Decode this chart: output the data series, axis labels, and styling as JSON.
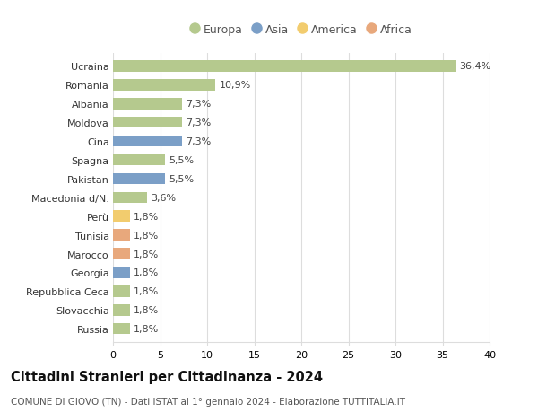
{
  "countries": [
    "Ucraina",
    "Romania",
    "Albania",
    "Moldova",
    "Cina",
    "Spagna",
    "Pakistan",
    "Macedonia d/N.",
    "Perù",
    "Tunisia",
    "Marocco",
    "Georgia",
    "Repubblica Ceca",
    "Slovacchia",
    "Russia"
  ],
  "values": [
    36.4,
    10.9,
    7.3,
    7.3,
    7.3,
    5.5,
    5.5,
    3.6,
    1.8,
    1.8,
    1.8,
    1.8,
    1.8,
    1.8,
    1.8
  ],
  "labels": [
    "36,4%",
    "10,9%",
    "7,3%",
    "7,3%",
    "7,3%",
    "5,5%",
    "5,5%",
    "3,6%",
    "1,8%",
    "1,8%",
    "1,8%",
    "1,8%",
    "1,8%",
    "1,8%",
    "1,8%"
  ],
  "continents": [
    "Europa",
    "Europa",
    "Europa",
    "Europa",
    "Asia",
    "Europa",
    "Asia",
    "Europa",
    "America",
    "Africa",
    "Africa",
    "Asia",
    "Europa",
    "Europa",
    "Europa"
  ],
  "continent_colors": {
    "Europa": "#b5c98e",
    "Asia": "#7b9fc7",
    "America": "#f2cc6e",
    "Africa": "#e8a87c"
  },
  "legend_order": [
    "Europa",
    "Asia",
    "America",
    "Africa"
  ],
  "title": "Cittadini Stranieri per Cittadinanza - 2024",
  "subtitle": "COMUNE DI GIOVO (TN) - Dati ISTAT al 1° gennaio 2024 - Elaborazione TUTTITALIA.IT",
  "xlim": [
    0,
    40
  ],
  "xticks": [
    0,
    5,
    10,
    15,
    20,
    25,
    30,
    35,
    40
  ],
  "bg_color": "#ffffff",
  "grid_color": "#dddddd",
  "bar_height": 0.6,
  "label_fontsize": 8,
  "title_fontsize": 10.5,
  "subtitle_fontsize": 7.5,
  "ytick_fontsize": 8,
  "xtick_fontsize": 8
}
